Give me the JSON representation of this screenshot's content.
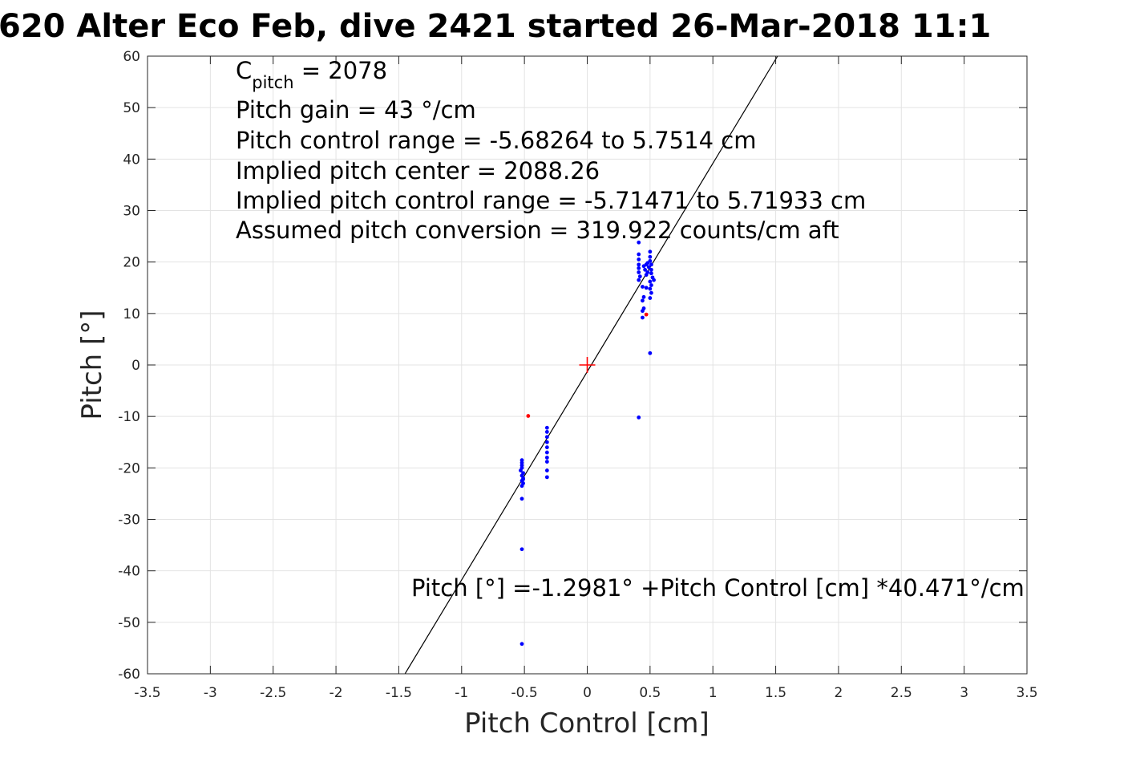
{
  "chart_data": {
    "type": "scatter",
    "title": "620 Alter Eco Feb, dive 2421 started 26-Mar-2018 11:1",
    "xlabel": "Pitch Control [cm]",
    "ylabel": "Pitch [°]",
    "xlim": [
      -3.5,
      3.5
    ],
    "ylim": [
      -60,
      60
    ],
    "grid": true,
    "x_ticks": [
      "-3.5",
      "-3",
      "-2.5",
      "-2",
      "-1.5",
      "-1",
      "-0.5",
      "0",
      "0.5",
      "1",
      "1.5",
      "2",
      "2.5",
      "3",
      "3.5"
    ],
    "y_ticks": [
      "60",
      "50",
      "40",
      "30",
      "20",
      "10",
      "0",
      "-10",
      "-20",
      "-30",
      "-40",
      "-50",
      "-60"
    ],
    "annotations": {
      "c_pitch_main": "C",
      "c_pitch_sub": "pitch",
      "c_pitch_value": " = 2078",
      "pitch_gain": "Pitch gain = 43 °/cm",
      "pitch_control_range": "Pitch control range = -5.68264 to 5.7514 cm",
      "implied_pitch_center": "Implied pitch center = 2088.26",
      "implied_pitch_control_range": "Implied pitch control range = -5.71471 to 5.71933 cm",
      "assumed_pitch_conversion": "Assumed pitch conversion = 319.922 counts/cm aft",
      "fit_equation": "Pitch [°] =-1.2981° +Pitch Control [cm] *40.471°/cm"
    },
    "fit_line": {
      "intercept": -1.2981,
      "slope": 40.471,
      "color": "#000000"
    },
    "center_marker": {
      "x": 0,
      "y": 0,
      "color": "#ff0000"
    },
    "series": [
      {
        "color": "#0000ff",
        "points": [
          [
            -0.52,
            -18.5
          ],
          [
            -0.52,
            -19.0
          ],
          [
            -0.52,
            -19.5
          ],
          [
            -0.52,
            -20.0
          ],
          [
            -0.51,
            -21.0
          ],
          [
            -0.52,
            -21.5
          ],
          [
            -0.51,
            -22.0
          ],
          [
            -0.52,
            -22.5
          ],
          [
            -0.51,
            -23.0
          ],
          [
            -0.52,
            -23.5
          ],
          [
            -0.51,
            -22.2
          ],
          [
            -0.53,
            -20.5
          ],
          [
            -0.52,
            -26.0
          ],
          [
            -0.52,
            -35.8
          ],
          [
            -0.52,
            -54.2
          ],
          [
            -0.32,
            -12.2
          ],
          [
            -0.32,
            -13.0
          ],
          [
            -0.32,
            -14.0
          ],
          [
            -0.32,
            -15.0
          ],
          [
            -0.32,
            -16.0
          ],
          [
            -0.32,
            -17.0
          ],
          [
            -0.32,
            -18.0
          ],
          [
            -0.32,
            -18.8
          ],
          [
            -0.32,
            -20.5
          ],
          [
            -0.32,
            -21.8
          ],
          [
            0.41,
            23.8
          ],
          [
            0.41,
            21.5
          ],
          [
            0.41,
            20.5
          ],
          [
            0.41,
            19.5
          ],
          [
            0.41,
            18.8
          ],
          [
            0.41,
            18.0
          ],
          [
            0.42,
            17.2
          ],
          [
            0.41,
            16.5
          ],
          [
            0.44,
            15.2
          ],
          [
            0.45,
            13.2
          ],
          [
            0.44,
            12.5
          ],
          [
            0.45,
            11.0
          ],
          [
            0.44,
            10.5
          ],
          [
            0.44,
            9.2
          ],
          [
            0.41,
            -10.2
          ],
          [
            0.45,
            19.2
          ],
          [
            0.46,
            18.5
          ],
          [
            0.47,
            19.5
          ],
          [
            0.48,
            18.0
          ],
          [
            0.47,
            17.5
          ],
          [
            0.48,
            19.8
          ],
          [
            0.49,
            19.0
          ],
          [
            0.5,
            21.0
          ],
          [
            0.5,
            22.0
          ],
          [
            0.5,
            20.2
          ],
          [
            0.51,
            18.5
          ],
          [
            0.51,
            17.8
          ],
          [
            0.5,
            16.2
          ],
          [
            0.51,
            15.5
          ],
          [
            0.5,
            14.8
          ],
          [
            0.51,
            14.0
          ],
          [
            0.5,
            13.0
          ],
          [
            0.51,
            19.5
          ],
          [
            0.52,
            17.0
          ],
          [
            0.53,
            16.5
          ],
          [
            0.47,
            15.0
          ],
          [
            0.5,
            2.3
          ]
        ]
      },
      {
        "color": "#ff0000",
        "points": [
          [
            -0.47,
            -9.9
          ],
          [
            0.47,
            9.8
          ]
        ]
      }
    ]
  }
}
